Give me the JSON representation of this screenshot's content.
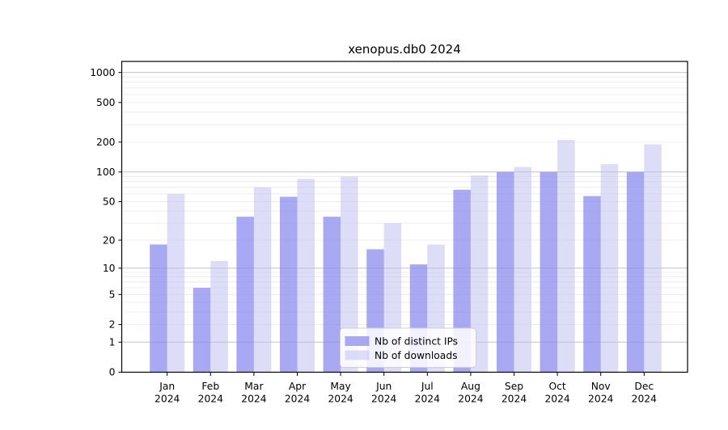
{
  "chart_data": {
    "type": "bar",
    "title": "xenopus.db0 2024",
    "categories": [
      "Jan 2024",
      "Feb 2024",
      "Mar 2024",
      "Apr 2024",
      "May 2024",
      "Jun 2024",
      "Jul 2024",
      "Aug 2024",
      "Sep 2024",
      "Oct 2024",
      "Nov 2024",
      "Dec 2024"
    ],
    "series": [
      {
        "name": "Nb of distinct IPs",
        "color": "#8888ee",
        "alpha": 0.72,
        "values": [
          18,
          6,
          35,
          56,
          35,
          16,
          11,
          66,
          100,
          100,
          57,
          100
        ]
      },
      {
        "name": "Nb of downloads",
        "color": "#bbbbf0",
        "alpha": 0.5,
        "values": [
          60,
          12,
          70,
          85,
          90,
          30,
          18,
          92,
          112,
          210,
          120,
          190
        ]
      }
    ],
    "xlabel": "",
    "ylabel": "",
    "yscale": "log1p",
    "ylim": [
      0,
      1290
    ],
    "yticks": [
      0,
      1,
      2,
      5,
      10,
      20,
      50,
      100,
      200,
      500,
      1000
    ],
    "grid": true,
    "legend_position": "lower center",
    "colors": {
      "major_gridline": "#c4c4c4",
      "minor_gridline": "#ececec",
      "axis": "#000000",
      "legend_border": "#cfcfcf",
      "legend_background": "#ffffff"
    }
  }
}
